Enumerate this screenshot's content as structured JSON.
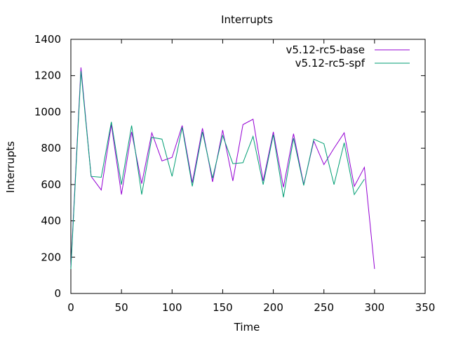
{
  "chart_data": {
    "type": "line",
    "title": "Interrupts",
    "xlabel": "Time",
    "ylabel": "Interrupts",
    "xlim": [
      0,
      350
    ],
    "ylim": [
      0,
      1400
    ],
    "xticks": [
      0,
      50,
      100,
      150,
      200,
      250,
      300,
      350
    ],
    "yticks": [
      0,
      200,
      400,
      600,
      800,
      1000,
      1200,
      1400
    ],
    "grid": false,
    "legend_position": "top-right",
    "series": [
      {
        "name": "v5.12-rc5-base",
        "color": "#9400d3",
        "x": [
          0,
          10,
          20,
          30,
          40,
          50,
          60,
          70,
          80,
          90,
          100,
          110,
          120,
          130,
          140,
          150,
          160,
          170,
          180,
          190,
          200,
          210,
          220,
          230,
          240,
          250,
          260,
          270,
          280,
          290,
          300
        ],
        "values": [
          150,
          1245,
          645,
          570,
          930,
          545,
          890,
          605,
          885,
          730,
          750,
          925,
          610,
          910,
          615,
          900,
          620,
          930,
          960,
          620,
          890,
          585,
          880,
          600,
          840,
          710,
          800,
          885,
          590,
          695,
          135
        ]
      },
      {
        "name": "v5.12-rc5-spf",
        "color": "#009e73",
        "x": [
          0,
          10,
          20,
          30,
          40,
          50,
          60,
          70,
          80,
          90,
          100,
          110,
          120,
          130,
          140,
          150,
          160,
          170,
          180,
          190,
          200,
          210,
          220,
          230,
          240,
          250,
          260,
          270,
          280,
          290
        ],
        "values": [
          135,
          1225,
          645,
          640,
          945,
          600,
          925,
          545,
          860,
          850,
          645,
          915,
          590,
          890,
          635,
          870,
          715,
          720,
          865,
          600,
          875,
          530,
          855,
          595,
          850,
          825,
          600,
          830,
          545,
          630
        ]
      }
    ]
  }
}
